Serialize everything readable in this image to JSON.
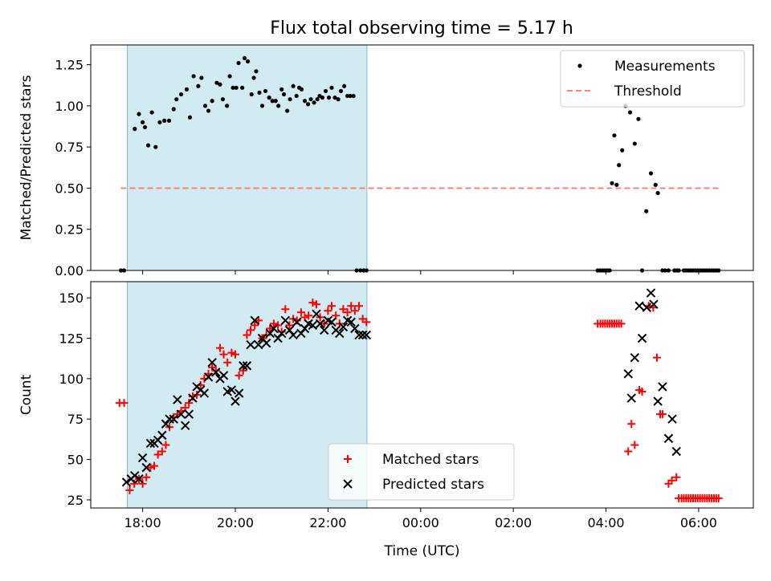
{
  "figure": {
    "title": "Flux total observing time = 5.17 h"
  },
  "chart_data": [
    {
      "type": "scatter",
      "panel": "top",
      "ylabel": "Matched/Predicted stars",
      "xlabel": "",
      "xlim_hours": [
        16.88,
        31.18
      ],
      "ylim": [
        0,
        1.37
      ],
      "yticks": [
        0.0,
        0.25,
        0.5,
        0.75,
        1.0,
        1.25
      ],
      "ytick_labels": [
        "0.00",
        "0.25",
        "0.50",
        "0.75",
        "1.00",
        "1.25"
      ],
      "xticks_hours": [
        18,
        20,
        22,
        24,
        26,
        28,
        30
      ],
      "xtick_labels_shown": false,
      "grid": false,
      "legend_placement": "top-right",
      "shaded_span_hours": [
        17.67,
        22.84
      ],
      "shaded_color": "#add8e6",
      "series": [
        {
          "name": "Measurements",
          "marker": "dot",
          "color": "#000000",
          "x_hours": [
            17.53,
            17.6,
            17.83,
            17.92,
            18.0,
            18.05,
            18.12,
            18.2,
            18.28,
            18.37,
            18.47,
            18.57,
            18.67,
            18.73,
            18.83,
            18.95,
            19.02,
            19.1,
            19.2,
            19.27,
            19.35,
            19.42,
            19.5,
            19.6,
            19.67,
            19.73,
            19.82,
            19.88,
            19.95,
            20.02,
            20.07,
            20.15,
            20.2,
            20.27,
            20.35,
            20.4,
            20.45,
            20.52,
            20.58,
            20.65,
            20.73,
            20.8,
            20.87,
            20.93,
            21.0,
            21.05,
            21.12,
            21.18,
            21.25,
            21.32,
            21.38,
            21.43,
            21.5,
            21.57,
            21.63,
            21.7,
            21.77,
            21.82,
            21.88,
            21.95,
            22.02,
            22.08,
            22.15,
            22.22,
            22.28,
            22.35,
            22.42,
            22.48,
            22.55,
            22.62,
            22.7,
            22.77,
            22.83,
            27.82,
            27.88,
            27.93,
            27.98,
            28.03,
            28.08,
            28.13,
            28.18,
            28.23,
            28.28,
            28.35,
            28.42,
            28.52,
            28.62,
            28.7,
            28.78,
            28.87,
            28.97,
            29.07,
            29.12,
            29.22,
            29.28,
            29.35,
            29.48,
            29.53,
            29.57,
            29.68,
            29.73,
            29.78,
            29.83,
            29.88,
            29.93,
            29.98,
            30.03,
            30.08,
            30.13,
            30.18,
            30.23,
            30.28,
            30.33,
            30.38,
            30.43
          ],
          "y": [
            0.0,
            0.0,
            0.86,
            0.95,
            0.9,
            0.87,
            0.76,
            0.96,
            0.75,
            0.9,
            0.91,
            0.91,
            0.98,
            1.04,
            1.07,
            1.1,
            0.93,
            1.18,
            1.12,
            1.17,
            1.0,
            0.97,
            1.03,
            1.14,
            1.13,
            1.04,
            1.0,
            1.18,
            1.11,
            1.11,
            1.26,
            1.11,
            1.29,
            1.27,
            1.07,
            1.17,
            1.21,
            1.08,
            1.0,
            1.09,
            1.05,
            1.03,
            1.03,
            1.0,
            1.1,
            1.07,
            0.97,
            1.04,
            1.12,
            1.06,
            1.11,
            1.1,
            1.03,
            1.01,
            1.04,
            1.02,
            1.04,
            1.06,
            1.05,
            1.09,
            1.05,
            1.11,
            1.05,
            1.04,
            1.09,
            1.12,
            1.06,
            1.06,
            1.06,
            0.0,
            0.0,
            0.0,
            0.0,
            0.0,
            0.0,
            0.0,
            0.0,
            0.0,
            0.0,
            0.53,
            0.82,
            0.52,
            0.64,
            0.73,
            1.0,
            0.96,
            0.77,
            0.92,
            0.0,
            0.36,
            0.59,
            0.52,
            0.47,
            0.0,
            0.0,
            0.0,
            0.0,
            0.0,
            0.0,
            0.0,
            0.0,
            0.0,
            0.0,
            0.0,
            0.0,
            0.0,
            0.0,
            0.0,
            0.0,
            0.0,
            0.0,
            0.0,
            0.0,
            0.0,
            0.0
          ]
        },
        {
          "name": "Threshold",
          "marker": "dashed-line",
          "color": "#ff7f7f",
          "x_hours": [
            17.53,
            30.43
          ],
          "y": [
            0.5,
            0.5
          ]
        }
      ]
    },
    {
      "type": "scatter",
      "panel": "bottom",
      "ylabel": "Count",
      "xlabel": "Time (UTC)",
      "xlim_hours": [
        16.88,
        31.18
      ],
      "ylim": [
        20,
        160
      ],
      "yticks": [
        25,
        50,
        75,
        100,
        125,
        150
      ],
      "ytick_labels": [
        "25",
        "50",
        "75",
        "100",
        "125",
        "150"
      ],
      "xticks_hours": [
        18,
        20,
        22,
        24,
        26,
        28,
        30
      ],
      "xtick_labels": [
        "18:00",
        "20:00",
        "22:00",
        "00:00",
        "02:00",
        "04:00",
        "06:00"
      ],
      "grid": false,
      "legend_placement": "bottom-center",
      "shaded_span_hours": [
        17.67,
        22.84
      ],
      "shaded_color": "#add8e6",
      "series": [
        {
          "name": "Matched stars",
          "marker": "plus",
          "color": "#ff0000",
          "x_hours": [
            17.5,
            17.6,
            17.72,
            17.82,
            17.92,
            18.0,
            18.08,
            18.17,
            18.25,
            18.33,
            18.42,
            18.5,
            18.58,
            18.67,
            18.75,
            18.83,
            18.92,
            19.0,
            19.08,
            19.17,
            19.25,
            19.33,
            19.42,
            19.5,
            19.58,
            19.67,
            19.75,
            19.83,
            19.92,
            20.0,
            20.08,
            20.17,
            20.25,
            20.33,
            20.42,
            20.5,
            20.58,
            20.67,
            20.75,
            20.83,
            20.92,
            21.0,
            21.08,
            21.17,
            21.25,
            21.33,
            21.42,
            21.5,
            21.58,
            21.67,
            21.75,
            21.83,
            21.92,
            22.0,
            22.08,
            22.17,
            22.25,
            22.33,
            22.42,
            22.5,
            22.58,
            22.67,
            22.75,
            22.83,
            27.82,
            27.88,
            27.93,
            27.98,
            28.03,
            28.08,
            28.13,
            28.18,
            28.23,
            28.28,
            28.33,
            28.48,
            28.55,
            28.62,
            28.72,
            28.78,
            28.92,
            29.02,
            29.1,
            29.17,
            29.22,
            29.35,
            29.42,
            29.52,
            29.57,
            29.63,
            29.68,
            29.73,
            29.78,
            29.83,
            29.88,
            29.93,
            29.98,
            30.03,
            30.08,
            30.13,
            30.18,
            30.23,
            30.28,
            30.33,
            30.38,
            30.43
          ],
          "y": [
            85,
            85,
            31,
            35,
            38,
            35,
            39,
            45,
            46,
            53,
            55,
            59,
            70,
            76,
            78,
            80,
            82,
            85,
            89,
            90,
            96,
            100,
            103,
            107,
            105,
            119,
            115,
            110,
            116,
            115,
            102,
            105,
            127,
            130,
            133,
            136,
            125,
            127,
            131,
            134,
            133,
            129,
            143,
            133,
            137,
            136,
            141,
            138,
            139,
            147,
            146,
            138,
            134,
            142,
            145,
            139,
            134,
            143,
            141,
            145,
            142,
            145,
            137,
            135,
            134,
            134,
            134,
            134,
            134,
            134,
            134,
            134,
            134,
            134,
            134,
            55,
            72,
            59,
            93,
            92,
            145,
            144,
            113,
            78,
            78,
            35,
            37,
            39,
            26,
            26,
            26,
            26,
            26,
            26,
            26,
            26,
            26,
            26,
            26,
            26,
            26,
            26,
            26,
            26,
            26,
            26
          ]
        },
        {
          "name": "Predicted stars",
          "marker": "x",
          "color": "#000000",
          "x_hours": [
            17.65,
            17.75,
            17.83,
            17.92,
            18.0,
            18.08,
            18.17,
            18.25,
            18.33,
            18.42,
            18.5,
            18.58,
            18.67,
            18.75,
            18.83,
            18.92,
            19.0,
            19.08,
            19.17,
            19.25,
            19.33,
            19.42,
            19.5,
            19.58,
            19.67,
            19.75,
            19.83,
            19.92,
            20.0,
            20.08,
            20.17,
            20.25,
            20.33,
            20.42,
            20.5,
            20.58,
            20.67,
            20.75,
            20.83,
            20.92,
            21.0,
            21.08,
            21.17,
            21.25,
            21.33,
            21.42,
            21.5,
            21.58,
            21.67,
            21.75,
            21.83,
            21.92,
            22.0,
            22.08,
            22.17,
            22.25,
            22.33,
            22.42,
            22.5,
            22.58,
            22.67,
            22.75,
            22.83,
            28.48,
            28.55,
            28.62,
            28.72,
            28.78,
            28.88,
            28.97,
            29.03,
            29.12,
            29.22,
            29.35,
            29.43,
            29.52
          ],
          "y": [
            36,
            38,
            40,
            38,
            51,
            45,
            60,
            60,
            62,
            65,
            72,
            75,
            75,
            87,
            78,
            71,
            78,
            88,
            95,
            93,
            91,
            101,
            110,
            104,
            100,
            102,
            92,
            93,
            86,
            91,
            108,
            108,
            121,
            136,
            121,
            125,
            122,
            128,
            131,
            125,
            128,
            136,
            130,
            127,
            135,
            128,
            131,
            134,
            133,
            140,
            134,
            130,
            136,
            135,
            130,
            128,
            132,
            136,
            135,
            131,
            127,
            127,
            127,
            103,
            88,
            113,
            145,
            125,
            144,
            153,
            146,
            86,
            95,
            63,
            75,
            55
          ]
        }
      ]
    }
  ]
}
